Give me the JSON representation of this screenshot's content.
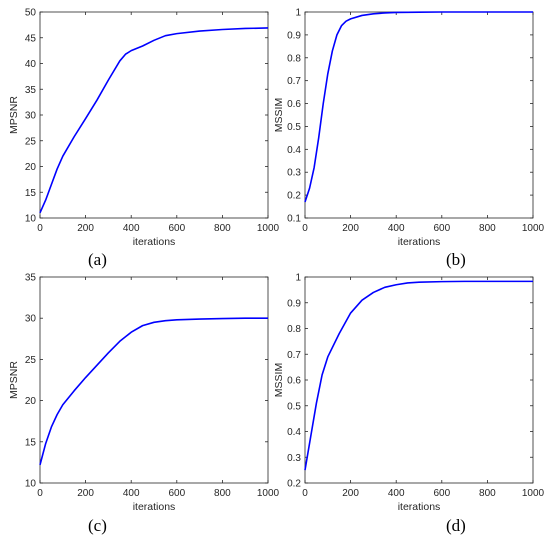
{
  "chart_data": [
    {
      "type": "line",
      "panel": "(a)",
      "xlabel": "iterations",
      "ylabel": "MPSNR",
      "xlim": [
        0,
        1000
      ],
      "ylim": [
        10,
        50
      ],
      "xticks": [
        0,
        200,
        400,
        600,
        800,
        1000
      ],
      "yticks": [
        10,
        15,
        20,
        25,
        30,
        35,
        40,
        45,
        50
      ],
      "grid": false,
      "series": [
        {
          "color": "#0000ff",
          "x": [
            0,
            25,
            50,
            75,
            100,
            150,
            200,
            250,
            300,
            350,
            375,
            400,
            450,
            500,
            550,
            600,
            700,
            800,
            900,
            1000
          ],
          "y": [
            11,
            13.5,
            16.5,
            19.5,
            22,
            25.8,
            29.3,
            32.9,
            36.8,
            40.5,
            41.8,
            42.5,
            43.4,
            44.5,
            45.4,
            45.8,
            46.3,
            46.6,
            46.8,
            46.9
          ]
        }
      ]
    },
    {
      "type": "line",
      "panel": "(b)",
      "xlabel": "iterations",
      "ylabel": "MSSIM",
      "xlim": [
        0,
        1000
      ],
      "ylim": [
        0.1,
        1
      ],
      "xticks": [
        0,
        200,
        400,
        600,
        800,
        1000
      ],
      "yticks": [
        0.1,
        0.2,
        0.3,
        0.4,
        0.5,
        0.6,
        0.7,
        0.8,
        0.9,
        1
      ],
      "grid": false,
      "series": [
        {
          "color": "#0000ff",
          "x": [
            0,
            20,
            40,
            60,
            80,
            100,
            120,
            140,
            160,
            180,
            200,
            250,
            300,
            350,
            400,
            500,
            600,
            800,
            1000
          ],
          "y": [
            0.17,
            0.23,
            0.32,
            0.45,
            0.6,
            0.73,
            0.83,
            0.9,
            0.94,
            0.96,
            0.97,
            0.985,
            0.992,
            0.996,
            0.998,
            0.999,
            1.0,
            1.0,
            1.0
          ]
        }
      ]
    },
    {
      "type": "line",
      "panel": "(c)",
      "xlabel": "iterations",
      "ylabel": "MPSNR",
      "xlim": [
        0,
        1000
      ],
      "ylim": [
        10,
        35
      ],
      "xticks": [
        0,
        200,
        400,
        600,
        800,
        1000
      ],
      "yticks": [
        10,
        15,
        20,
        25,
        30,
        35
      ],
      "grid": false,
      "series": [
        {
          "color": "#0000ff",
          "x": [
            0,
            25,
            50,
            75,
            100,
            150,
            200,
            250,
            300,
            350,
            400,
            450,
            500,
            550,
            600,
            700,
            800,
            900,
            1000
          ],
          "y": [
            12.2,
            14.8,
            16.8,
            18.3,
            19.5,
            21.2,
            22.8,
            24.3,
            25.8,
            27.2,
            28.3,
            29.1,
            29.5,
            29.7,
            29.8,
            29.9,
            29.95,
            30.0,
            30.0
          ]
        }
      ]
    },
    {
      "type": "line",
      "panel": "(d)",
      "xlabel": "iterations",
      "ylabel": "MSSIM",
      "xlim": [
        0,
        1000
      ],
      "ylim": [
        0.2,
        1
      ],
      "xticks": [
        0,
        200,
        400,
        600,
        800,
        1000
      ],
      "yticks": [
        0.2,
        0.3,
        0.4,
        0.5,
        0.6,
        0.7,
        0.8,
        0.9,
        1
      ],
      "grid": false,
      "series": [
        {
          "color": "#0000ff",
          "x": [
            0,
            25,
            50,
            75,
            100,
            150,
            200,
            250,
            300,
            350,
            400,
            450,
            500,
            600,
            700,
            800,
            900,
            1000
          ],
          "y": [
            0.25,
            0.38,
            0.51,
            0.62,
            0.69,
            0.78,
            0.86,
            0.91,
            0.94,
            0.96,
            0.97,
            0.977,
            0.98,
            0.982,
            0.983,
            0.983,
            0.983,
            0.983
          ]
        }
      ]
    }
  ]
}
